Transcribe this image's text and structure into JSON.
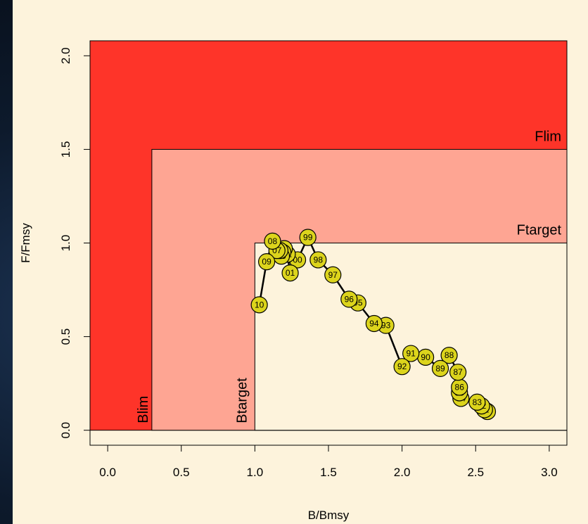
{
  "colors": {
    "background": "#fdf3dc",
    "red_zone": "#fe3429",
    "amber_zone": "#fea593",
    "safe_zone": "#fdf3dc",
    "point_fill": "#dcd41c",
    "line": "#000000"
  },
  "chart_data": {
    "type": "scatter",
    "xlabel": "B/Bmsy",
    "ylabel": "F/Fmsy",
    "xlim": [
      -0.12,
      3.12
    ],
    "ylim": [
      -0.08,
      2.08
    ],
    "x_ticks": [
      0.0,
      0.5,
      1.0,
      1.5,
      2.0,
      2.5,
      3.0
    ],
    "x_tick_labels": [
      "0.0",
      "0.5",
      "1.0",
      "1.5",
      "2.0",
      "2.5",
      "3.0"
    ],
    "y_ticks": [
      0.0,
      0.5,
      1.0,
      1.5,
      2.0
    ],
    "y_tick_labels": [
      "0.0",
      "0.5",
      "1.0",
      "1.5",
      "2.0"
    ],
    "reference_points": {
      "Blim": 0.3,
      "Btarget": 1.0,
      "Flim": 1.5,
      "Ftarget": 1.0
    },
    "zone_labels": {
      "Blim": "Blim",
      "Btarget": "Btarget",
      "Flim": "Flim",
      "Ftarget": "Ftarget"
    },
    "connected": true,
    "points": [
      {
        "label": "80",
        "x": 2.58,
        "y": 0.1
      },
      {
        "label": "81",
        "x": 2.56,
        "y": 0.11
      },
      {
        "label": "82",
        "x": 2.54,
        "y": 0.13
      },
      {
        "label": "83",
        "x": 2.51,
        "y": 0.15
      },
      {
        "label": "84",
        "x": 2.4,
        "y": 0.17
      },
      {
        "label": "85",
        "x": 2.39,
        "y": 0.2
      },
      {
        "label": "86",
        "x": 2.39,
        "y": 0.23
      },
      {
        "label": "87",
        "x": 2.38,
        "y": 0.31
      },
      {
        "label": "88",
        "x": 2.32,
        "y": 0.4
      },
      {
        "label": "89",
        "x": 2.26,
        "y": 0.33
      },
      {
        "label": "90",
        "x": 2.16,
        "y": 0.39
      },
      {
        "label": "91",
        "x": 2.06,
        "y": 0.41
      },
      {
        "label": "92",
        "x": 2.0,
        "y": 0.34
      },
      {
        "label": "93",
        "x": 1.89,
        "y": 0.56
      },
      {
        "label": "94",
        "x": 1.81,
        "y": 0.57
      },
      {
        "label": "95",
        "x": 1.7,
        "y": 0.68
      },
      {
        "label": "96",
        "x": 1.64,
        "y": 0.7
      },
      {
        "label": "97",
        "x": 1.53,
        "y": 0.83
      },
      {
        "label": "98",
        "x": 1.43,
        "y": 0.91
      },
      {
        "label": "99",
        "x": 1.36,
        "y": 1.03
      },
      {
        "label": "00",
        "x": 1.29,
        "y": 0.91
      },
      {
        "label": "01",
        "x": 1.24,
        "y": 0.84
      },
      {
        "label": "02",
        "x": 1.22,
        "y": 0.94
      },
      {
        "label": "03",
        "x": 1.2,
        "y": 0.97
      },
      {
        "label": "04",
        "x": 1.19,
        "y": 0.95
      },
      {
        "label": "05",
        "x": 1.18,
        "y": 0.93
      },
      {
        "label": "06",
        "x": 1.17,
        "y": 0.96
      },
      {
        "label": "07",
        "x": 1.15,
        "y": 0.96
      },
      {
        "label": "08",
        "x": 1.12,
        "y": 1.01
      },
      {
        "label": "09",
        "x": 1.08,
        "y": 0.9
      },
      {
        "label": "10",
        "x": 1.03,
        "y": 0.67
      }
    ]
  }
}
